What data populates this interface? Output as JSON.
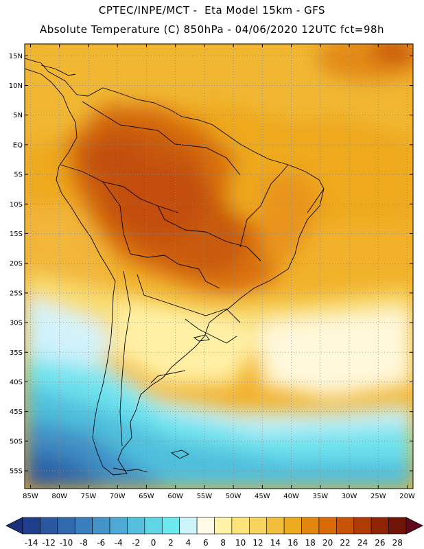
{
  "header": {
    "line1": "CPTEC/INPE/MCT -  Eta Model 15km - GFS",
    "line2": "Absolute Temperature (C) 850hPa - 04/06/2020 12UTC fct=98h"
  },
  "map": {
    "lat_labels": [
      "15N",
      "10N",
      "5N",
      "EQ",
      "5S",
      "10S",
      "15S",
      "20S",
      "25S",
      "30S",
      "35S",
      "40S",
      "45S",
      "50S",
      "55S"
    ],
    "lon_labels": [
      "85W",
      "80W",
      "75W",
      "70W",
      "65W",
      "60W",
      "55W",
      "50W",
      "45W",
      "40W",
      "35W",
      "30W",
      "25W",
      "20W"
    ],
    "lat_values": [
      15,
      10,
      5,
      0,
      -5,
      -10,
      -15,
      -20,
      -25,
      -30,
      -35,
      -40,
      -45,
      -50,
      -55
    ],
    "lon_values": [
      -85,
      -80,
      -75,
      -70,
      -65,
      -60,
      -55,
      -50,
      -45,
      -40,
      -35,
      -30,
      -25,
      -20
    ],
    "lat_range": [
      -58,
      17
    ],
    "lon_range": [
      -86,
      -19
    ],
    "grid": "dotted"
  },
  "colorbar": {
    "labels": [
      "-14",
      "-12",
      "-10",
      "-8",
      "-6",
      "-4",
      "-2",
      "0",
      "2",
      "4",
      "6",
      "8",
      "10",
      "12",
      "14",
      "16",
      "18",
      "20",
      "22",
      "24",
      "26",
      "28"
    ],
    "colors": [
      "#1f3f8c",
      "#2b56a0",
      "#3169ad",
      "#3a7fbd",
      "#4594c8",
      "#4ea9d4",
      "#56bfdd",
      "#5fd5e6",
      "#6de8ef",
      "#cdf3fb",
      "#fffbe8",
      "#fff3a8",
      "#fde57c",
      "#f7d460",
      "#f1bf3e",
      "#ecaa1e",
      "#e2860f",
      "#d86b08",
      "#c85306",
      "#ae3a04",
      "#8f2406",
      "#701507"
    ]
  }
}
